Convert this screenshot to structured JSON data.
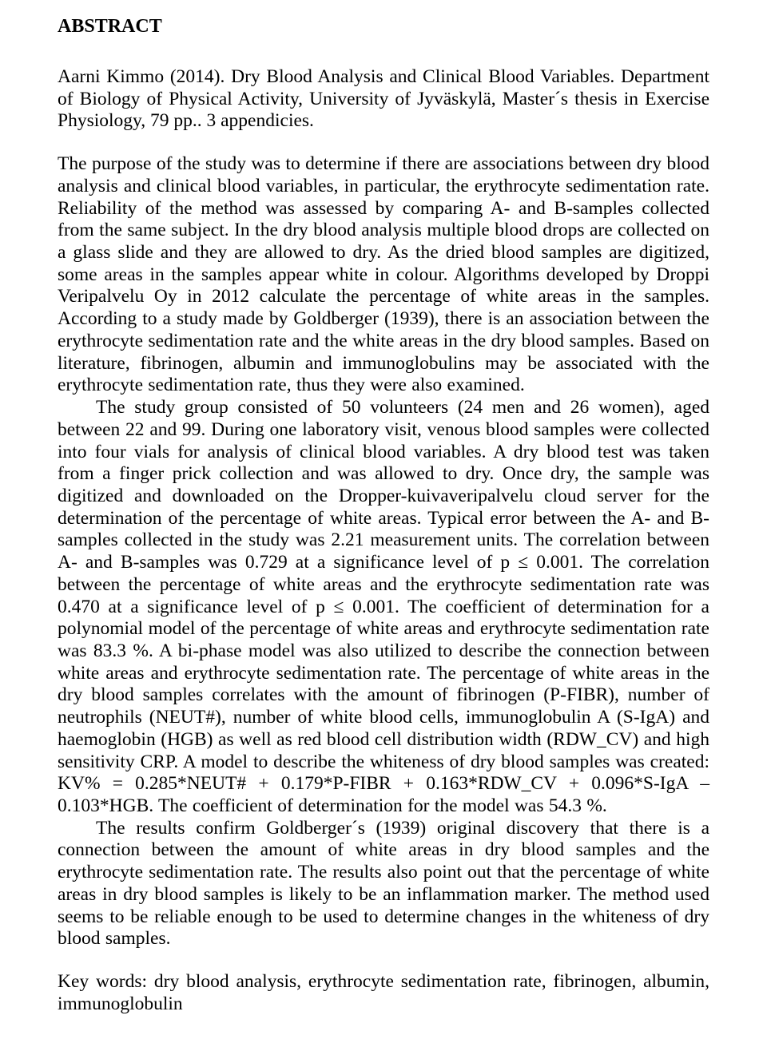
{
  "title": "ABSTRACT",
  "citation": "Aarni Kimmo (2014). Dry Blood Analysis and Clinical Blood Variables. Department of Biology of Physical Activity, University of Jyväskylä, Master´s thesis in Exercise Physiol­ogy, 79 pp.. 3 appendicies.",
  "para1": "The purpose of the study was to determine if there are associations between dry blood anal­ysis and clinical blood variables, in particular, the erythrocyte sedimentation rate. Reliabil­ity of the method was assessed by comparing A- and B-samples collected from the same subject. In the dry blood analysis multiple blood drops are collected on a glass slide and they are allowed to dry. As the dried blood samples are digitized, some areas in the samples appear white in colour. Algorithms developed by Droppi Veripalvelu Oy in 2012 calculate the percentage of white areas in the samples. According to a study made by Goldberger (1939), there is an association between the erythrocyte sedimentation rate and the white areas in the dry blood samples. Based on literature, fibrinogen, albumin and immunoglobu­lins may be associated with the erythrocyte sedimentation rate, thus they were also exam­ined.",
  "para2": "The study group consisted of 50 volunteers (24 men and 26 women), aged between 22 and 99. During one laboratory visit, venous blood samples were collected into four vials for analysis of clinical blood variables. A dry blood test was taken from a finger prick col­lection and was allowed to dry. Once dry, the sample was digitized and downloaded on the Dropper-kuivaveripalvelu cloud server for the determination of the percentage of white areas.  Typical error between the A- and B-samples collected in the study was 2.21 meas­urement units. The correlation between A- and B-samples was 0.729 at a significance level of p ≤ 0.001. The correlation between the percentage of white areas and the erythrocyte sedimentation rate was 0.470 at a significance level of p ≤ 0.001. The coefficient of deter­mination for a polynomial model of the percentage of white areas and erythrocyte sedimen­tation rate was 83.3 %. A bi-phase model was also utilized to describe the connection be­tween white areas and erythrocyte sedimentation rate. The percentage of white areas in the dry blood samples correlates with the amount of fibrinogen (P-FIBR), number of neutro­phils (NEUT#), number of white blood cells, immunoglobulin A (S-IgA) and haemoglobin (HGB) as well as red blood cell distribution width (RDW_CV) and high sensitivity CRP. A model to describe the whiteness of dry blood samples was created: KV% = 0.285*NEUT# + 0.179*P-FIBR + 0.163*RDW_CV + 0.096*S-IgA – 0.103*HGB. The coefficient of deter­mination for the model was 54.3 %.",
  "para3": "The results confirm Goldberger´s (1939) original discovery that there is a connec­tion between the amount of white areas in dry blood samples and the erythrocyte sedimen­tation rate. The results also point out that the percentage of white areas in dry blood sam­ples is likely to be an inflammation marker. The method used seems to be reliable enough to be used to determine changes in the whiteness of dry blood samples.",
  "keywords": "Key words: dry blood analysis, erythrocyte sedimentation rate, fibrinogen, albumin, immu­noglobulin"
}
